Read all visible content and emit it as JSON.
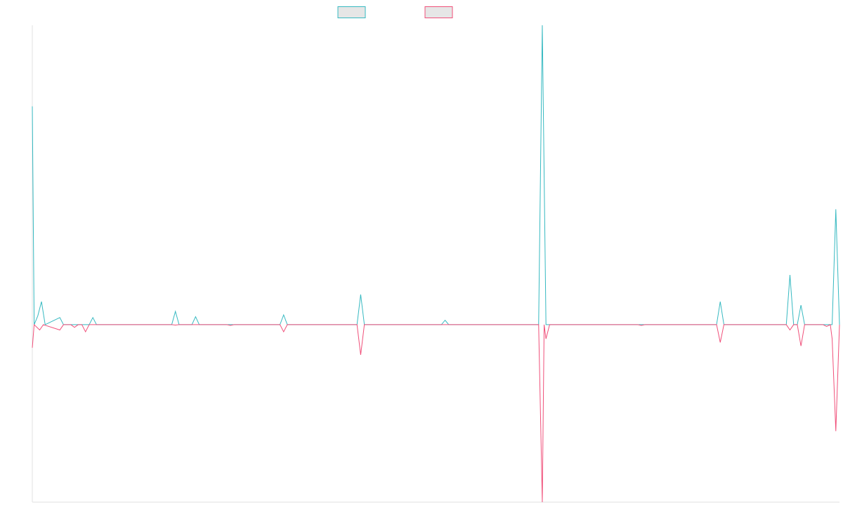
{
  "chart_data": {
    "type": "line",
    "title": "",
    "xlabel": "",
    "ylabel": "",
    "ylim": [
      -1.0,
      1.687
    ],
    "grid": false,
    "legend": "top-center",
    "series": [
      {
        "color": "#36b9c1",
        "points": [
          [
            0.0,
            1.23
          ],
          [
            0.5,
            0.0
          ],
          [
            1.5,
            0.05
          ],
          [
            2.5,
            0.13
          ],
          [
            3.5,
            0.0
          ],
          [
            7.5,
            0.04
          ],
          [
            8.5,
            0.0
          ],
          [
            13.0,
            0.0
          ],
          [
            14.0,
            0.0
          ],
          [
            15.5,
            0.0
          ],
          [
            16.5,
            0.04
          ],
          [
            17.5,
            0.0
          ],
          [
            38.0,
            0.0
          ],
          [
            39.0,
            0.075
          ],
          [
            40.0,
            0.0
          ],
          [
            43.5,
            0.0
          ],
          [
            44.5,
            0.045
          ],
          [
            45.5,
            0.0
          ],
          [
            53.0,
            0.0
          ],
          [
            54.0,
            0.0
          ],
          [
            67.5,
            0.0
          ],
          [
            68.5,
            0.055
          ],
          [
            69.5,
            0.0
          ],
          [
            88.5,
            0.0
          ],
          [
            89.5,
            0.17
          ],
          [
            90.5,
            0.0
          ],
          [
            111.5,
            0.0
          ],
          [
            112.5,
            0.025
          ],
          [
            113.5,
            0.0
          ],
          [
            138.0,
            0.0
          ],
          [
            139.0,
            1.687
          ],
          [
            140.0,
            0.0
          ],
          [
            165.0,
            0.0
          ],
          [
            166.0,
            0.0
          ],
          [
            186.5,
            0.0
          ],
          [
            187.5,
            0.13
          ],
          [
            188.5,
            0.0
          ],
          [
            205.5,
            0.0
          ],
          [
            206.5,
            0.28
          ],
          [
            207.5,
            0.0
          ],
          [
            208.5,
            0.0
          ],
          [
            209.5,
            0.11
          ],
          [
            210.5,
            0.0
          ],
          [
            215.5,
            0.0
          ],
          [
            216.5,
            0.0
          ],
          [
            218.0,
            0.0
          ],
          [
            219.0,
            0.65
          ],
          [
            220.0,
            0.0
          ]
        ]
      },
      {
        "color": "#f0507a",
        "points": [
          [
            0.0,
            -0.13
          ],
          [
            0.5,
            0.0
          ],
          [
            2.0,
            -0.03
          ],
          [
            3.0,
            0.0
          ],
          [
            7.5,
            -0.03
          ],
          [
            8.5,
            0.0
          ],
          [
            10.5,
            0.0
          ],
          [
            11.5,
            -0.015
          ],
          [
            12.5,
            0.0
          ],
          [
            13.5,
            0.0
          ],
          [
            14.5,
            -0.04
          ],
          [
            15.5,
            0.0
          ],
          [
            38.0,
            0.0
          ],
          [
            39.0,
            -0.002
          ],
          [
            40.0,
            0.0
          ],
          [
            53.0,
            0.0
          ],
          [
            54.0,
            -0.004
          ],
          [
            55.0,
            0.0
          ],
          [
            67.5,
            0.0
          ],
          [
            68.5,
            -0.04
          ],
          [
            69.5,
            0.0
          ],
          [
            88.5,
            0.0
          ],
          [
            89.5,
            -0.17
          ],
          [
            90.5,
            0.0
          ],
          [
            138.0,
            0.0
          ],
          [
            139.0,
            -1.0
          ],
          [
            139.5,
            0.0
          ],
          [
            140.0,
            -0.08
          ],
          [
            141.0,
            0.0
          ],
          [
            165.0,
            0.0
          ],
          [
            166.0,
            -0.004
          ],
          [
            167.0,
            0.0
          ],
          [
            186.5,
            0.0
          ],
          [
            187.5,
            -0.1
          ],
          [
            188.5,
            0.0
          ],
          [
            205.5,
            0.0
          ],
          [
            206.5,
            -0.03
          ],
          [
            207.5,
            0.0
          ],
          [
            208.5,
            0.0
          ],
          [
            209.5,
            -0.12
          ],
          [
            210.5,
            0.0
          ],
          [
            215.5,
            0.0
          ],
          [
            216.5,
            -0.01
          ],
          [
            217.5,
            0.0
          ],
          [
            218.0,
            -0.08
          ],
          [
            219.0,
            -0.6
          ],
          [
            220.0,
            0.0
          ]
        ]
      }
    ]
  }
}
